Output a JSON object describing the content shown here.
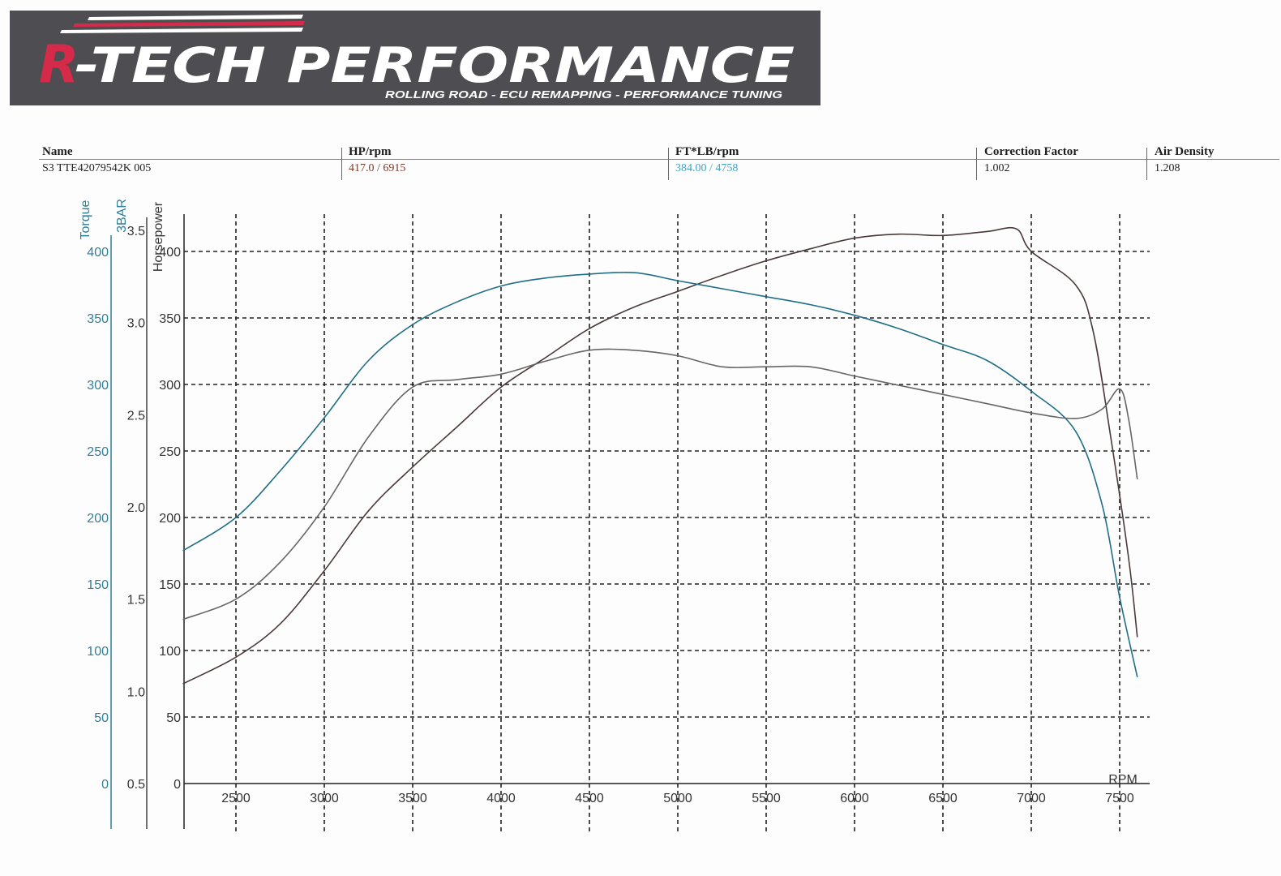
{
  "header": {
    "brand": "R-TECH PERFORMANCE",
    "tagline": "ROLLING ROAD - ECU REMAPPING - PERFORMANCE TUNING",
    "colors": {
      "banner_bg": "#4e4d52",
      "accent_red": "#d62a4a",
      "text_white": "#ffffff"
    }
  },
  "info": {
    "name_label": "Name",
    "name_value": "S3 TTE42079542K 005",
    "hp_label": "HP/rpm",
    "hp_value": "417.0 / 6915",
    "torque_label": "FT*LB/rpm",
    "torque_value": "384.00 / 4758",
    "cf_label": "Correction Factor",
    "cf_value": "1.002",
    "ad_label": "Air Density",
    "ad_value": "1.208",
    "colors": {
      "hp": "#7a3a2a",
      "torque": "#3fa3c4"
    }
  },
  "chart_data": {
    "type": "line",
    "xlabel": "RPM",
    "xticks": [
      2500,
      3000,
      3500,
      4000,
      4500,
      5000,
      5500,
      6000,
      6500,
      7000,
      7500
    ],
    "xlim": [
      2200,
      7650
    ],
    "axes": {
      "torque": {
        "label": "Torque",
        "ticks": [
          0,
          50,
          100,
          150,
          200,
          250,
          300,
          350,
          400
        ],
        "color": "#2f7f98"
      },
      "boost": {
        "label": "3BAR",
        "ticks": [
          "0.5",
          "1.0",
          "1.5",
          "2.0",
          "2.5",
          "3.0",
          "3.5"
        ],
        "color": "#2f7f98"
      },
      "hp": {
        "label": "Horsepower",
        "ticks": [
          0,
          50,
          100,
          150,
          200,
          250,
          300,
          350,
          400
        ],
        "color": "#333333"
      }
    },
    "series": [
      {
        "axis": "hp",
        "color": "#4a3a3a",
        "x": [
          2200,
          2500,
          2750,
          3000,
          3250,
          3500,
          3750,
          4000,
          4250,
          4500,
          4750,
          5000,
          5250,
          5500,
          5750,
          6000,
          6250,
          6500,
          6750,
          6915,
          7000,
          7250,
          7350,
          7450,
          7550,
          7600
        ],
        "y": [
          75,
          95,
          120,
          160,
          205,
          238,
          268,
          298,
          320,
          342,
          358,
          370,
          382,
          393,
          402,
          410,
          413,
          412,
          415,
          417,
          400,
          375,
          340,
          260,
          170,
          110
        ]
      },
      {
        "axis": "torque",
        "color": "#1f6f85",
        "x": [
          2200,
          2500,
          2750,
          3000,
          3250,
          3500,
          3750,
          4000,
          4250,
          4500,
          4758,
          5000,
          5250,
          5500,
          5750,
          6000,
          6250,
          6500,
          6750,
          7000,
          7250,
          7400,
          7500,
          7600
        ],
        "y": [
          175,
          200,
          235,
          275,
          318,
          345,
          362,
          374,
          380,
          383,
          384,
          378,
          372,
          366,
          360,
          352,
          342,
          330,
          318,
          295,
          265,
          210,
          140,
          80
        ]
      },
      {
        "axis": "boost",
        "color": "#666666",
        "x": [
          2200,
          2500,
          2750,
          3000,
          3250,
          3500,
          3750,
          4000,
          4250,
          4500,
          4750,
          5000,
          5250,
          5500,
          5750,
          6000,
          6250,
          6500,
          6750,
          7000,
          7250,
          7400,
          7500,
          7550,
          7600
        ],
        "y": [
          1.39,
          1.5,
          1.7,
          2.0,
          2.38,
          2.65,
          2.69,
          2.72,
          2.79,
          2.85,
          2.85,
          2.82,
          2.76,
          2.76,
          2.76,
          2.71,
          2.66,
          2.61,
          2.56,
          2.51,
          2.48,
          2.53,
          2.64,
          2.48,
          2.15
        ]
      }
    ]
  }
}
